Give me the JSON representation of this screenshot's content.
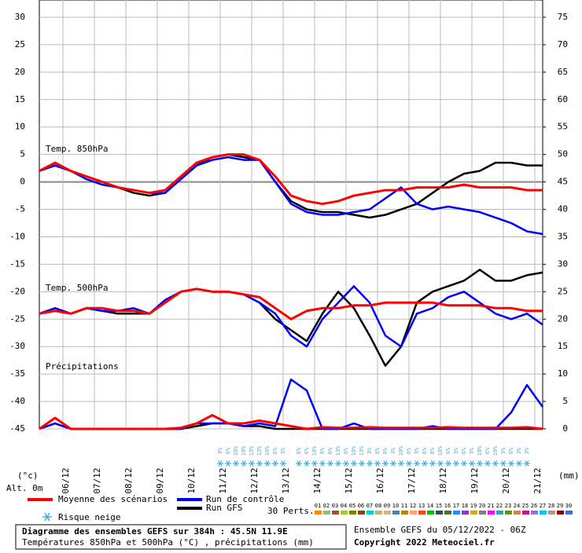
{
  "chart_data": {
    "type": "line",
    "x": [
      0,
      12,
      24,
      36,
      48,
      60,
      72,
      84,
      96,
      108,
      120,
      132,
      144,
      156,
      168,
      180,
      192,
      204,
      216,
      228,
      240,
      252,
      264,
      276,
      288,
      300,
      312,
      324,
      336,
      348,
      360,
      372,
      384
    ],
    "xlim": [
      0,
      384
    ],
    "xticks": [
      {
        "value": 18,
        "label": "06/12"
      },
      {
        "value": 42,
        "label": "07/12"
      },
      {
        "value": 66,
        "label": "08/12"
      },
      {
        "value": 90,
        "label": "09/12"
      },
      {
        "value": 114,
        "label": "10/12"
      },
      {
        "value": 138,
        "label": "11/12"
      },
      {
        "value": 162,
        "label": "12/12"
      },
      {
        "value": 186,
        "label": "13/12"
      },
      {
        "value": 210,
        "label": "14/12"
      },
      {
        "value": 234,
        "label": "15/12"
      },
      {
        "value": 258,
        "label": "16/12"
      },
      {
        "value": 282,
        "label": "17/12"
      },
      {
        "value": 306,
        "label": "18/12"
      },
      {
        "value": 330,
        "label": "19/12"
      },
      {
        "value": 354,
        "label": "20/12"
      },
      {
        "value": 378,
        "label": "21/12"
      }
    ],
    "ylim": [
      -45,
      30
    ],
    "yticks": [
      30,
      25,
      20,
      15,
      10,
      5,
      0,
      -5,
      -10,
      -15,
      -20,
      -25,
      -30,
      -35,
      -40,
      -45
    ],
    "y2lim": [
      0,
      75
    ],
    "y2ticks": [
      75,
      70,
      65,
      60,
      55,
      50,
      45,
      40,
      35,
      30,
      25,
      20,
      15,
      10,
      5,
      0
    ],
    "grid": true,
    "ylabel": "(°c)",
    "y2label": "(mm)",
    "altitude": "Alt. 0m",
    "panel_labels": {
      "t850": "Temp. 850hPa",
      "t500": "Temp. 500hPa",
      "precip": "Précipitations"
    },
    "series": [
      {
        "name": "Run GFS",
        "color": "#000000",
        "t850": [
          2,
          3,
          2,
          1,
          0,
          -1,
          -2,
          -2.5,
          -2,
          0.5,
          3,
          4.5,
          5,
          4.5,
          4,
          0,
          -3.5,
          -5,
          -5.5,
          -5.5,
          -6,
          -6.5,
          -6,
          -5,
          -4,
          -2,
          0,
          1.5,
          2,
          3.5,
          3.5,
          3,
          3
        ],
        "t500": [
          -24,
          -23,
          -24,
          -23,
          -23.5,
          -24,
          -24,
          -24,
          -22,
          -20,
          -19.5,
          -20,
          -20,
          -20.5,
          -22,
          -25,
          -27,
          -29,
          -24,
          -20,
          -23,
          -28,
          -33.5,
          -30,
          -22,
          -20,
          -19,
          -18,
          -16,
          -18,
          -18,
          -17,
          -16.5
        ],
        "precip": [
          0,
          1,
          0,
          0,
          0,
          0,
          0,
          0,
          0,
          0,
          0.5,
          1,
          1,
          0.5,
          0.5,
          0,
          0,
          0,
          0,
          0,
          0,
          0,
          0,
          0,
          0,
          0,
          0,
          0,
          0,
          0,
          0,
          0,
          0
        ]
      },
      {
        "name": "Run de contrôle",
        "color": "#0000ff",
        "t850": [
          2,
          3,
          2,
          0.5,
          -0.5,
          -1,
          -1.5,
          -2,
          -2,
          0.5,
          3,
          4,
          4.5,
          4,
          4,
          0,
          -4,
          -5.5,
          -6,
          -6,
          -5.5,
          -5,
          -3,
          -1,
          -4,
          -5,
          -4.5,
          -5,
          -5.5,
          -6.5,
          -7.5,
          -9,
          -9.5
        ],
        "t500": [
          -24,
          -23,
          -24,
          -23,
          -23.5,
          -23.5,
          -23,
          -24,
          -21.5,
          -20,
          -19.5,
          -20,
          -20,
          -20.5,
          -22,
          -24,
          -28,
          -30,
          -25,
          -22,
          -19,
          -22,
          -28,
          -30,
          -24,
          -23,
          -21,
          -20,
          -22,
          -24,
          -25,
          -24,
          -26
        ],
        "precip": [
          0,
          1,
          0,
          0,
          0,
          0,
          0,
          0,
          0,
          0,
          1,
          1,
          1,
          0.5,
          1,
          0.5,
          9,
          7,
          0,
          0,
          1,
          0,
          0,
          0,
          0,
          0.5,
          0,
          0,
          0,
          0,
          3,
          8,
          4
        ]
      },
      {
        "name": "Moyenne des scénarios",
        "color": "#ff0000",
        "t850": [
          2,
          3.5,
          2,
          1,
          0,
          -1,
          -1.5,
          -2,
          -1.5,
          1,
          3.5,
          4.5,
          5,
          5,
          4,
          1,
          -2.5,
          -3.5,
          -4,
          -3.5,
          -2.5,
          -2,
          -1.5,
          -1.5,
          -1,
          -1,
          -1,
          -0.5,
          -1,
          -1,
          -1,
          -1.5,
          -1.5
        ],
        "t500": [
          -24,
          -23.5,
          -24,
          -23,
          -23,
          -23.5,
          -23.5,
          -24,
          -22,
          -20,
          -19.5,
          -20,
          -20,
          -20.5,
          -21,
          -23,
          -25,
          -23.5,
          -23,
          -23,
          -22.5,
          -22.5,
          -22,
          -22,
          -22,
          -22,
          -22.5,
          -22.5,
          -22.5,
          -23,
          -23,
          -23.5,
          -23.5
        ],
        "precip": [
          0,
          2,
          0,
          0,
          0,
          0,
          0,
          0,
          0,
          0.2,
          1,
          2.5,
          1,
          1,
          1.5,
          1,
          0.5,
          0,
          0.3,
          0.2,
          0.2,
          0.3,
          0.2,
          0.2,
          0.2,
          0.2,
          0.3,
          0.2,
          0.2,
          0.2,
          0.2,
          0.3,
          0
        ]
      }
    ],
    "snow_risk": {
      "name": "Risque neige",
      "x": [
        138,
        144,
        150,
        156,
        162,
        168,
        174,
        180,
        186,
        198,
        204,
        210,
        216,
        222,
        228,
        234,
        240,
        246,
        252,
        258,
        264,
        270,
        276,
        282,
        288,
        294,
        300,
        306,
        312,
        318,
        324,
        330,
        336,
        342,
        348,
        354,
        360,
        366,
        372
      ],
      "values": [
        3,
        6,
        10,
        10,
        13,
        13,
        10,
        6,
        3,
        6,
        6,
        10,
        6,
        6,
        13,
        6,
        10,
        13,
        3,
        6,
        6,
        3,
        10,
        6,
        3,
        6,
        6,
        10,
        6,
        3,
        6,
        3,
        10,
        6,
        10,
        3,
        6,
        3,
        3
      ],
      "value_labels": [
        "3%",
        "6%",
        "10%",
        "10%",
        "13%",
        "13%",
        "10%",
        "6%",
        "3%",
        "6%",
        "6%",
        "10%",
        "6%",
        "6%",
        "13%",
        "6%",
        "10%",
        "13%",
        "3%",
        "6%",
        "6%",
        "3%",
        "10%",
        "6%",
        "3%",
        "6%",
        "6%",
        "10%",
        "6%",
        "3%",
        "6%",
        "3%",
        "10%",
        "6%",
        "10%",
        "3%",
        "6%",
        "3%",
        "3%"
      ]
    },
    "members_label": "30 Perts.",
    "members": [
      {
        "name": "01",
        "color": "#ff8c00"
      },
      {
        "name": "02",
        "color": "#8fbc8f"
      },
      {
        "name": "03",
        "color": "#a0522d"
      },
      {
        "name": "04",
        "color": "#9acd32"
      },
      {
        "name": "05",
        "color": "#808000"
      },
      {
        "name": "06",
        "color": "#8b4513"
      },
      {
        "name": "07",
        "color": "#00ced1"
      },
      {
        "name": "08",
        "color": "#bdb76b"
      },
      {
        "name": "09",
        "color": "#d2b48c"
      },
      {
        "name": "10",
        "color": "#4682b4"
      },
      {
        "name": "11",
        "color": "#b8860b"
      },
      {
        "name": "12",
        "color": "#ffa07a"
      },
      {
        "name": "13",
        "color": "#ff4500"
      },
      {
        "name": "14",
        "color": "#00c000"
      },
      {
        "name": "15",
        "color": "#2f4f4f"
      },
      {
        "name": "16",
        "color": "#556b2f"
      },
      {
        "name": "17",
        "color": "#1e90ff"
      },
      {
        "name": "18",
        "color": "#9932cc"
      },
      {
        "name": "19",
        "color": "#daa520"
      },
      {
        "name": "20",
        "color": "#808080"
      },
      {
        "name": "21",
        "color": "#ff00ff"
      },
      {
        "name": "22",
        "color": "#20b2aa"
      },
      {
        "name": "23",
        "color": "#6b8e23"
      },
      {
        "name": "24",
        "color": "#cd853f"
      },
      {
        "name": "25",
        "color": "#c71585"
      },
      {
        "name": "26",
        "color": "#9370db"
      },
      {
        "name": "27",
        "color": "#00bfff"
      },
      {
        "name": "28",
        "color": "#bc8f8f"
      },
      {
        "name": "29",
        "color": "#800000"
      },
      {
        "name": "30",
        "color": "#4169e1"
      }
    ],
    "footer": {
      "title": "Diagramme des ensembles GEFS sur 384h : 45.5N 11.9E",
      "subtitle": "Températures 850hPa et 500hPa (°C) , précipitations (mm)",
      "run": "Ensemble GEFS du 05/12/2022 - 06Z",
      "copyright": "Copyright 2022 Meteociel.fr"
    }
  }
}
